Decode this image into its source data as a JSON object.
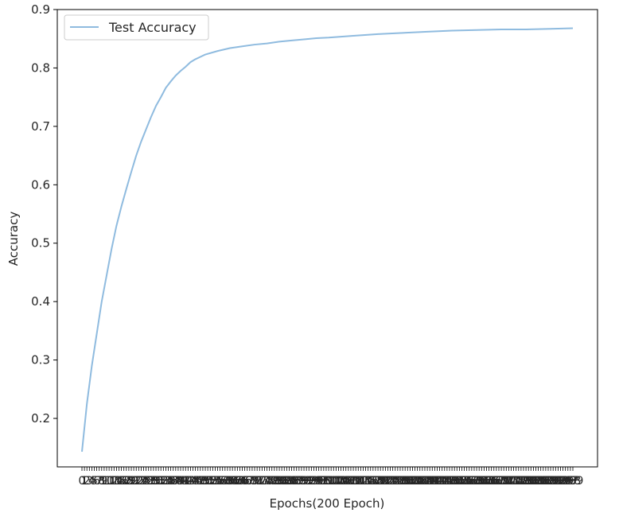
{
  "chart_data": {
    "type": "line",
    "title": "",
    "xlabel": "Epochs(200 Epoch)",
    "ylabel": "Accuracy",
    "xlim": [
      -10.0,
      209.0
    ],
    "ylim": [
      0.117,
      0.9
    ],
    "y_ticks": [
      0.2,
      0.3,
      0.4,
      0.5,
      0.6,
      0.7,
      0.8,
      0.9
    ],
    "y_tick_labels": [
      "0.2",
      "0.3",
      "0.4",
      "0.5",
      "0.6",
      "0.7",
      "0.8",
      "0.9"
    ],
    "x_tick_labels": [
      "0",
      "199"
    ],
    "x_tick_count": 200,
    "grid": false,
    "legend": {
      "placement": "top-left",
      "entries": [
        "Test Accuracy"
      ]
    },
    "series": [
      {
        "name": "Test Accuracy",
        "color": "#8fbbdf",
        "x": [
          0,
          2,
          4,
          6,
          8,
          10,
          12,
          14,
          16,
          18,
          20,
          22,
          24,
          26,
          28,
          30,
          32,
          34,
          36,
          38,
          40,
          42,
          44,
          46,
          48,
          50,
          55,
          60,
          65,
          70,
          75,
          80,
          85,
          90,
          95,
          100,
          110,
          120,
          130,
          140,
          150,
          160,
          170,
          180,
          190,
          199
        ],
        "values": [
          0.143,
          0.225,
          0.29,
          0.345,
          0.4,
          0.445,
          0.49,
          0.53,
          0.563,
          0.593,
          0.622,
          0.65,
          0.674,
          0.695,
          0.716,
          0.735,
          0.75,
          0.766,
          0.777,
          0.787,
          0.795,
          0.802,
          0.81,
          0.815,
          0.819,
          0.823,
          0.829,
          0.834,
          0.837,
          0.84,
          0.842,
          0.845,
          0.847,
          0.849,
          0.851,
          0.852,
          0.855,
          0.858,
          0.86,
          0.862,
          0.864,
          0.865,
          0.866,
          0.866,
          0.867,
          0.868
        ]
      }
    ]
  }
}
